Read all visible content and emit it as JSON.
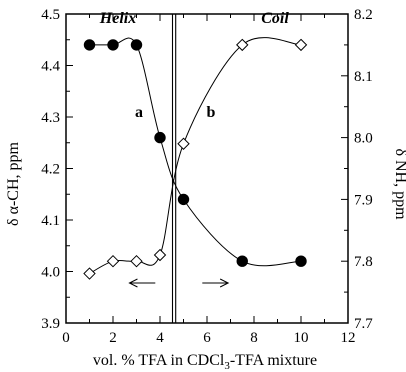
{
  "chart_data": {
    "type": "scatter",
    "xlabel": "vol. % TFA in CDCl",
    "xlabel_sub": "3",
    "xlabel_rest": "-TFA mixture",
    "ylabel_left": "δ α-CH, ppm",
    "ylabel_right": "δ NH, ppm",
    "xlim": [
      0,
      12
    ],
    "ylim_left": [
      3.9,
      4.5
    ],
    "ylim_right": [
      7.7,
      8.2
    ],
    "x_ticks": [
      0,
      2,
      4,
      6,
      8,
      10,
      12
    ],
    "x_tick_labels": [
      "0",
      "2",
      "4",
      "6",
      "8",
      "10",
      "12"
    ],
    "y_left_ticks": [
      3.9,
      4.0,
      4.1,
      4.2,
      4.3,
      4.4,
      4.5
    ],
    "y_left_tick_labels": [
      "3.9",
      "4.0",
      "4.1",
      "4.2",
      "4.3",
      "4.4",
      "4.5"
    ],
    "y_right_ticks": [
      7.7,
      7.8,
      7.9,
      8.0,
      8.1,
      8.2
    ],
    "y_right_tick_labels": [
      "7.7",
      "7.8",
      "7.9",
      "8.0",
      "8.1",
      "8.2"
    ],
    "transition_x": 4.6,
    "region_labels": [
      "Helix",
      "Coil"
    ],
    "series": [
      {
        "name": "a",
        "marker": "filled-circle",
        "axis": "left",
        "x": [
          1,
          2,
          3,
          4,
          5,
          7.5,
          10
        ],
        "y": [
          4.44,
          4.44,
          4.44,
          4.26,
          4.14,
          4.02,
          4.02
        ]
      },
      {
        "name": "b",
        "marker": "open-diamond",
        "axis": "right",
        "x": [
          1,
          2,
          3,
          4,
          5,
          7.5,
          10
        ],
        "y": [
          7.78,
          7.8,
          7.8,
          7.81,
          7.99,
          8.15,
          8.15
        ]
      }
    ],
    "arrows": [
      "left",
      "right"
    ]
  }
}
